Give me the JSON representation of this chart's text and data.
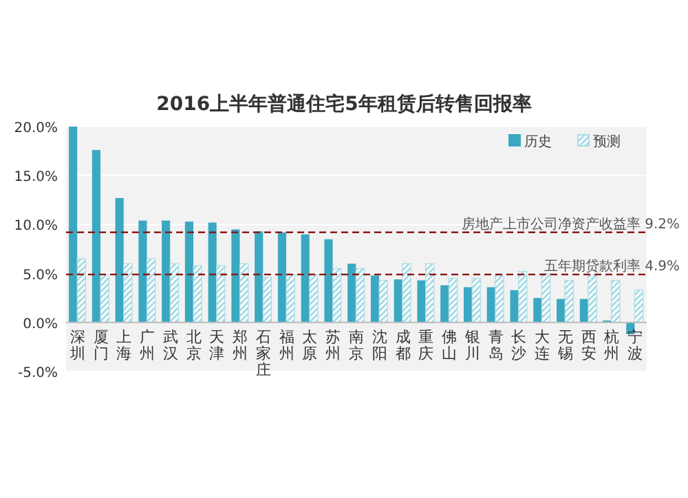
{
  "chart_data": {
    "type": "bar",
    "title": "2016上半年普通住宅5年租赁后转售回报率",
    "categories": [
      "深圳",
      "厦门",
      "上海",
      "广州",
      "武汉",
      "北京",
      "天津",
      "郑州",
      "石家庄",
      "福州",
      "太原",
      "苏州",
      "南京",
      "沈阳",
      "成都",
      "重庆",
      "佛山",
      "银川",
      "青岛",
      "长沙",
      "大连",
      "无锡",
      "西安",
      "杭州",
      "宁波"
    ],
    "series": [
      {
        "name": "历史",
        "color": "#3aa8c1",
        "values": [
          20.0,
          17.6,
          12.7,
          10.4,
          10.4,
          10.3,
          10.2,
          9.5,
          9.3,
          9.2,
          9.0,
          8.5,
          6.0,
          4.8,
          4.4,
          4.3,
          3.8,
          3.6,
          3.6,
          3.3,
          2.5,
          2.4,
          2.4,
          0.2,
          -1.2
        ]
      },
      {
        "name": "预测",
        "color": "#a8dbe6",
        "values": [
          6.5,
          4.9,
          6.0,
          6.5,
          6.0,
          5.8,
          5.8,
          6.0,
          4.6,
          4.9,
          4.9,
          5.5,
          5.5,
          4.3,
          6.0,
          6.0,
          4.5,
          4.5,
          4.8,
          5.2,
          5.0,
          4.3,
          4.8,
          4.3,
          3.3
        ]
      }
    ],
    "ylim": [
      -5,
      20
    ],
    "yticks": [
      {
        "value": -5,
        "label": "-5.0%"
      },
      {
        "value": 0,
        "label": "0.0%"
      },
      {
        "value": 5,
        "label": "5.0%"
      },
      {
        "value": 10,
        "label": "10.0%"
      },
      {
        "value": 15,
        "label": "15.0%"
      },
      {
        "value": 20,
        "label": "20.0%"
      }
    ],
    "grid": "y",
    "legend": "top right",
    "ref_lines": [
      {
        "axis": "y",
        "value": 9.2,
        "label": "房地产上市公司净资产收益率 9.2%",
        "color": "#8b1a1a",
        "line_style": "dashed"
      },
      {
        "axis": "y",
        "value": 4.9,
        "label": "五年期贷款利率 4.9%",
        "color": "#8b1a1a",
        "line_style": "dashed"
      }
    ]
  }
}
